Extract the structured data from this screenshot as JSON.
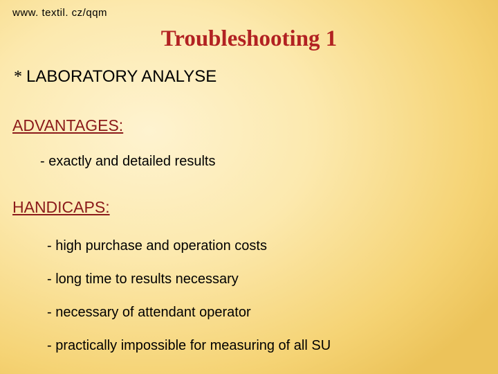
{
  "header": {
    "url": "www. textil. cz/qqm"
  },
  "title": "Troubleshooting 1",
  "main_bullet": {
    "marker": "*",
    "text": "LABORATORY ANALYSE"
  },
  "sections": {
    "advantages": {
      "heading": "ADVANTAGES:",
      "items": [
        "- exactly and detailed results"
      ]
    },
    "handicaps": {
      "heading": "HANDICAPS:",
      "items": [
        "-  high purchase and operation costs",
        "-  long time to results necessary",
        "-  necessary of attendant operator",
        "-  practically impossible for measuring of all SU"
      ]
    }
  },
  "colors": {
    "title_color": "#b22222",
    "section_color": "#8b1a1a",
    "text_color": "#000000"
  }
}
